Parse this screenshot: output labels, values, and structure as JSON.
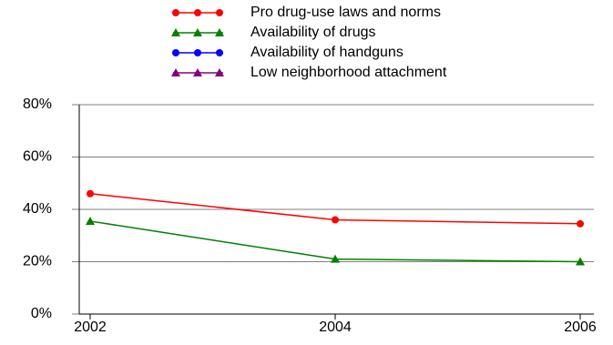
{
  "chart_data": {
    "type": "line",
    "categories": [
      "2002",
      "2004",
      "2006"
    ],
    "series": [
      {
        "name": "Pro drug-use laws and norms",
        "color": "#ff0000",
        "marker": "circle",
        "values": [
          46,
          36,
          34.5
        ]
      },
      {
        "name": "Availability of drugs",
        "color": "#008000",
        "marker": "triangle",
        "values": [
          35.5,
          21,
          20
        ]
      },
      {
        "name": "Availability of handguns",
        "color": "#0000ff",
        "marker": "circle",
        "values": [
          null,
          null,
          null
        ]
      },
      {
        "name": "Low neighborhood attachment",
        "color": "#800080",
        "marker": "triangle",
        "values": [
          null,
          null,
          null
        ]
      }
    ],
    "ylim": [
      0,
      80
    ],
    "yticks": [
      {
        "value": 0,
        "label": "0%"
      },
      {
        "value": 20,
        "label": "20%"
      },
      {
        "value": 40,
        "label": "40%"
      },
      {
        "value": 60,
        "label": "60%"
      },
      {
        "value": 80,
        "label": "80%"
      }
    ],
    "grid": true,
    "legend": "top"
  }
}
